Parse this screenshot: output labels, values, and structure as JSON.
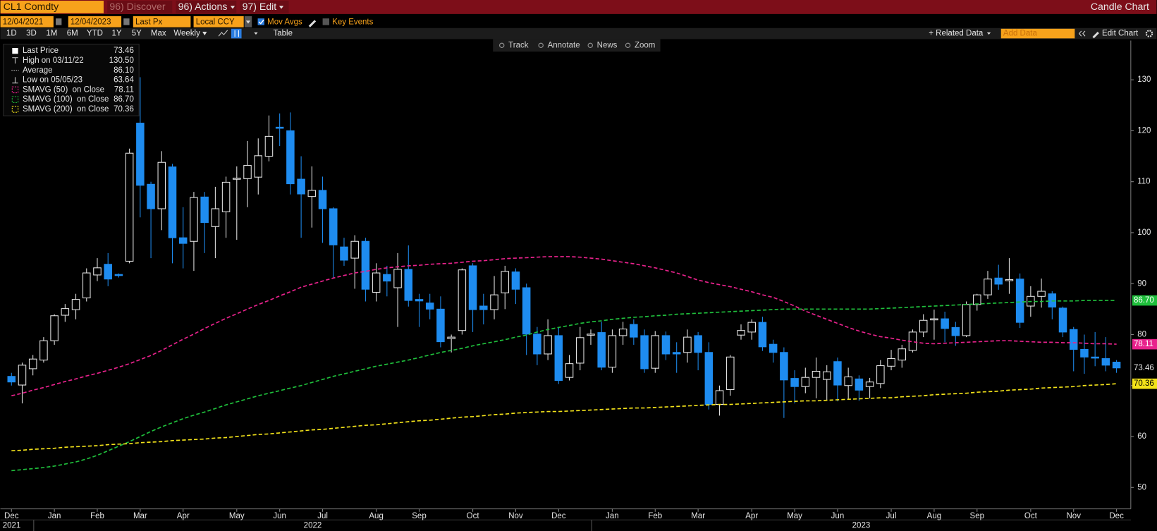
{
  "ui": {
    "security": "CL1 Comdty",
    "menu": [
      "96) Discover",
      "96) Actions",
      "97) Edit"
    ],
    "view_title": "Candle Chart",
    "start_date": "12/04/2021",
    "end_date": "12/04/2023",
    "field": "Last Px",
    "currency": "Local CCY",
    "toggles": [
      "Mov Avgs",
      "Key Events"
    ],
    "periods": [
      "1D",
      "3D",
      "1M",
      "6M",
      "YTD",
      "1Y",
      "5Y",
      "Max"
    ],
    "frequency": "Weekly",
    "table": "Table",
    "related": "+ Related Data",
    "add_data": "Add Data",
    "edit_chart": "Edit Chart",
    "tools": [
      "Track",
      "Annotate",
      "News",
      "Zoom"
    ]
  },
  "chart_data": {
    "type": "candlestick",
    "categories": [
      "Dec",
      null,
      null,
      null,
      "Jan",
      null,
      null,
      null,
      "Feb",
      null,
      null,
      null,
      "Mar",
      null,
      null,
      null,
      "Apr",
      null,
      null,
      null,
      null,
      "May",
      null,
      null,
      null,
      "Jun",
      null,
      null,
      null,
      "Jul",
      null,
      null,
      null,
      null,
      "Aug",
      null,
      null,
      null,
      "Sep",
      null,
      null,
      null,
      null,
      "Oct",
      null,
      null,
      null,
      "Nov",
      null,
      null,
      null,
      "Dec",
      null,
      null,
      null,
      null,
      "Jan",
      null,
      null,
      null,
      "Feb",
      null,
      null,
      null,
      "Mar",
      null,
      null,
      null,
      null,
      "Apr",
      null,
      null,
      null,
      "May",
      null,
      null,
      null,
      "Jun",
      null,
      null,
      null,
      null,
      "Jul",
      null,
      null,
      null,
      "Aug",
      null,
      null,
      null,
      "Sep",
      null,
      null,
      null,
      null,
      "Oct",
      null,
      null,
      null,
      "Nov",
      null,
      null,
      null,
      "Dec"
    ],
    "years": [
      "2021",
      "2022",
      "2023"
    ],
    "open": [
      71.8,
      70.1,
      73.3,
      75.0,
      78.8,
      83.8,
      84.9,
      87.2,
      91.7,
      93.8,
      91.8,
      94.4,
      121.5,
      109.5,
      104.7,
      112.9,
      99.0,
      98.3,
      107,
      101.2,
      104.1,
      110.5,
      110.6,
      110.9,
      115,
      120.7,
      120.0,
      110.5,
      107.1,
      108.3,
      104.7,
      97.2,
      95,
      98.3,
      88.3,
      91.8,
      89.2,
      92.8,
      86.9,
      86.2,
      85,
      79.2,
      80.8,
      93.5,
      85.6,
      84.9,
      88.2,
      92.3,
      89.2,
      80.1,
      76.2,
      79.8,
      71.6,
      74.4,
      80,
      80.4,
      73.6,
      79.8,
      82,
      79.8,
      73.4,
      79.8,
      76.5,
      76.5,
      79.8,
      76.5,
      66.3,
      69.2,
      79.9,
      80.5,
      82.4,
      78.1,
      76.5,
      71.4,
      69.8,
      71.6,
      71.2,
      74.7,
      70.0,
      71.3,
      69.8,
      70.4,
      73.8,
      75.0,
      76.9,
      80.5,
      82.9,
      83.1,
      81.4,
      79.8,
      85.9,
      87.8,
      91.1,
      90.7,
      90.9,
      85.6,
      87.5,
      88,
      85.2,
      81,
      77.1,
      75.6,
      75.3,
      74.6
    ],
    "high": [
      72.5,
      74.5,
      76,
      79.5,
      84,
      86,
      88,
      93,
      95,
      96,
      92,
      116.5,
      130.5,
      110,
      116,
      113.5,
      105,
      108,
      108,
      109,
      111,
      113,
      118,
      118.5,
      123,
      123.4,
      123.6,
      115,
      113,
      111,
      105,
      99,
      99.5,
      99,
      94,
      93.5,
      96,
      97.5,
      88,
      88,
      87.5,
      80,
      93,
      94,
      88,
      91.5,
      93.5,
      93,
      90,
      81.5,
      83,
      81.5,
      76,
      81.5,
      81,
      82.5,
      81,
      82.5,
      83,
      81,
      80.7,
      80.6,
      78.5,
      81,
      80.5,
      78.5,
      70,
      76,
      82,
      83,
      83.5,
      79,
      77.5,
      73,
      73.5,
      75.5,
      74,
      75.5,
      73.5,
      72,
      71.5,
      75,
      77,
      78,
      81,
      84,
      84.9,
      84.5,
      82.5,
      86.5,
      88,
      92.5,
      93.7,
      95,
      92,
      89.5,
      91,
      88.5,
      85.5,
      81.5,
      80,
      80.5,
      79.5,
      75
    ],
    "low": [
      70,
      66.5,
      72,
      74.5,
      78,
      82.5,
      83,
      86.5,
      90.5,
      89.5,
      91.2,
      94,
      103,
      95,
      100.5,
      94,
      93,
      92.5,
      96,
      95,
      99,
      98.6,
      105,
      107.5,
      114,
      117,
      107.5,
      99,
      101,
      98,
      91,
      93.5,
      89,
      86.5,
      86.5,
      87.5,
      81.5,
      85.5,
      81.5,
      83,
      77.5,
      76.5,
      80,
      80.5,
      82,
      83,
      85,
      86,
      76,
      74,
      75,
      70.3,
      71,
      73,
      78,
      73,
      72.5,
      78,
      78,
      72.5,
      72.5,
      75,
      72.5,
      74.5,
      73,
      65.3,
      64.1,
      68,
      79,
      79,
      76.8,
      74.5,
      63.64,
      66.5,
      68.5,
      67.5,
      67,
      66.9,
      67.3,
      67,
      67.5,
      69.5,
      73,
      73.5,
      76.5,
      79.5,
      79,
      78.5,
      77.8,
      79.5,
      84.7,
      87,
      88.8,
      88,
      81.3,
      83.5,
      85.3,
      83,
      79.5,
      72.8,
      72.3,
      73.8,
      72.8,
      72.5
    ],
    "close": [
      70.7,
      74.0,
      75.2,
      78.8,
      83.7,
      85.1,
      86.9,
      92.1,
      93.1,
      90.9,
      91.6,
      115.6,
      109.3,
      104.7,
      113.8,
      99.0,
      97.9,
      106.9,
      102,
      104.7,
      109.9,
      110.7,
      113.2,
      115.1,
      118.9,
      120.6,
      109.6,
      107.6,
      108.3,
      104.7,
      97.6,
      94.6,
      98.3,
      88.9,
      92.1,
      90.5,
      92.8,
      86.7,
      86.6,
      85,
      78.6,
      79.5,
      92.7,
      84.9,
      84.9,
      87.8,
      92.4,
      88.9,
      80.1,
      76.2,
      79.8,
      71.0,
      74.3,
      79.4,
      80.1,
      73.6,
      79.8,
      81.1,
      79.5,
      73.3,
      79.8,
      76.2,
      76.2,
      79.5,
      76.5,
      66.3,
      69.0,
      75.6,
      80.8,
      82.4,
      77.6,
      76.5,
      71.1,
      69.8,
      71.6,
      72.8,
      72.7,
      70.1,
      71.7,
      69.1,
      70.7,
      73.9,
      75.3,
      77.2,
      80.5,
      82.8,
      83.1,
      81.2,
      79.8,
      85.9,
      87.8,
      90.9,
      89.9,
      90.8,
      82.4,
      87.5,
      88.5,
      85.4,
      80.5,
      77.1,
      75.6,
      75.5,
      74,
      73.46
    ],
    "up_color": "#e8e8e8",
    "down_color": "#1e8cf0",
    "ylim": [
      45.8,
      137.7
    ],
    "yticks": [
      50,
      60,
      70,
      80,
      90,
      100,
      110,
      120,
      130
    ],
    "stats": [
      {
        "name": "Last Price",
        "value": "73.46"
      },
      {
        "name": "High on 03/11/22",
        "value": "130.50"
      },
      {
        "name": "Average",
        "value": "86.10"
      },
      {
        "name": "Low on 05/05/23",
        "value": "63.64"
      }
    ],
    "series": [
      {
        "name": "SMAVG (50)  on Close",
        "color": "#e8228c",
        "last_value_label": "78.11",
        "values": [
          68.0,
          68.5,
          69.1,
          69.6,
          70.2,
          70.8,
          71.3,
          71.9,
          72.4,
          73.0,
          73.6,
          74.3,
          75.1,
          75.9,
          76.9,
          78.0,
          79.1,
          80.1,
          81.2,
          82.2,
          83.2,
          84.1,
          85.0,
          85.9,
          86.7,
          87.6,
          88.4,
          89.3,
          89.9,
          90.5,
          91.1,
          91.6,
          92.1,
          92.4,
          92.8,
          93.1,
          93.3,
          93.5,
          93.6,
          93.8,
          93.9,
          94.0,
          94.2,
          94.4,
          94.5,
          94.7,
          94.9,
          95.0,
          95.1,
          95.2,
          95.3,
          95.3,
          95.3,
          95.2,
          95.0,
          94.8,
          94.5,
          94.2,
          93.9,
          93.5,
          93.1,
          92.6,
          92.1,
          91.4,
          90.7,
          90.2,
          89.8,
          89.4,
          88.9,
          88.4,
          87.8,
          87.3,
          86.5,
          85.6,
          84.6,
          83.8,
          83.0,
          82.2,
          81.4,
          80.7,
          80.1,
          79.6,
          79.3,
          78.9,
          78.6,
          78.3,
          78.2,
          78.3,
          78.4,
          78.5,
          78.6,
          78.7,
          78.8,
          78.8,
          78.7,
          78.6,
          78.5,
          78.5,
          78.4,
          78.4,
          78.3,
          78.2,
          78.2,
          78.11
        ]
      },
      {
        "name": "SMAVG (100)  on Close",
        "color": "#1fbf3c",
        "last_value_label": "86.70",
        "values": [
          53.3,
          53.5,
          53.7,
          53.9,
          54.2,
          54.6,
          55.0,
          55.6,
          56.3,
          57.2,
          58.1,
          59.0,
          60.0,
          61.0,
          61.9,
          62.7,
          63.5,
          64.2,
          64.8,
          65.5,
          66.2,
          66.8,
          67.4,
          68.0,
          68.5,
          69.0,
          69.5,
          70.0,
          70.6,
          71.2,
          71.8,
          72.3,
          72.8,
          73.3,
          73.8,
          74.2,
          74.6,
          75.0,
          75.5,
          76.0,
          76.5,
          76.9,
          77.3,
          77.8,
          78.2,
          78.6,
          79.0,
          79.5,
          79.9,
          80.5,
          81.0,
          81.4,
          81.8,
          82.2,
          82.5,
          82.7,
          83.0,
          83.2,
          83.4,
          83.5,
          83.7,
          83.8,
          84.0,
          84.1,
          84.2,
          84.3,
          84.4,
          84.5,
          84.6,
          84.7,
          84.8,
          84.9,
          85.0,
          85.0,
          85.0,
          85.0,
          85.0,
          85.0,
          85.0,
          85.0,
          85.0,
          85.1,
          85.2,
          85.3,
          85.4,
          85.5,
          85.6,
          85.7,
          85.8,
          85.9,
          86.0,
          86.1,
          86.2,
          86.3,
          86.4,
          86.5,
          86.5,
          86.6,
          86.6,
          86.6,
          86.7,
          86.7,
          86.7,
          86.7
        ]
      },
      {
        "name": "SMAVG (200)  on Close",
        "color": "#f2e21a",
        "last_value_label": "70.36",
        "values": [
          57.2,
          57.3,
          57.5,
          57.6,
          57.7,
          57.9,
          58.0,
          58.1,
          58.2,
          58.4,
          58.5,
          58.6,
          58.8,
          58.9,
          59.0,
          59.2,
          59.3,
          59.4,
          59.5,
          59.7,
          59.8,
          60.0,
          60.2,
          60.4,
          60.5,
          60.7,
          60.9,
          61.1,
          61.3,
          61.4,
          61.6,
          61.8,
          62.0,
          62.2,
          62.3,
          62.5,
          62.7,
          62.9,
          63.1,
          63.2,
          63.4,
          63.6,
          63.8,
          63.9,
          64.1,
          64.3,
          64.4,
          64.6,
          64.7,
          64.8,
          64.9,
          64.9,
          65.0,
          65.1,
          65.2,
          65.3,
          65.4,
          65.5,
          65.6,
          65.6,
          65.7,
          65.8,
          65.9,
          66.0,
          66.1,
          66.2,
          66.3,
          66.3,
          66.4,
          66.5,
          66.6,
          66.7,
          66.8,
          66.9,
          67.0,
          67.0,
          67.1,
          67.2,
          67.3,
          67.4,
          67.5,
          67.6,
          67.6,
          67.8,
          67.9,
          68.0,
          68.2,
          68.3,
          68.4,
          68.5,
          68.7,
          68.8,
          68.9,
          69.1,
          69.2,
          69.3,
          69.5,
          69.6,
          69.7,
          69.8,
          70.0,
          70.1,
          70.2,
          70.36
        ]
      }
    ]
  }
}
